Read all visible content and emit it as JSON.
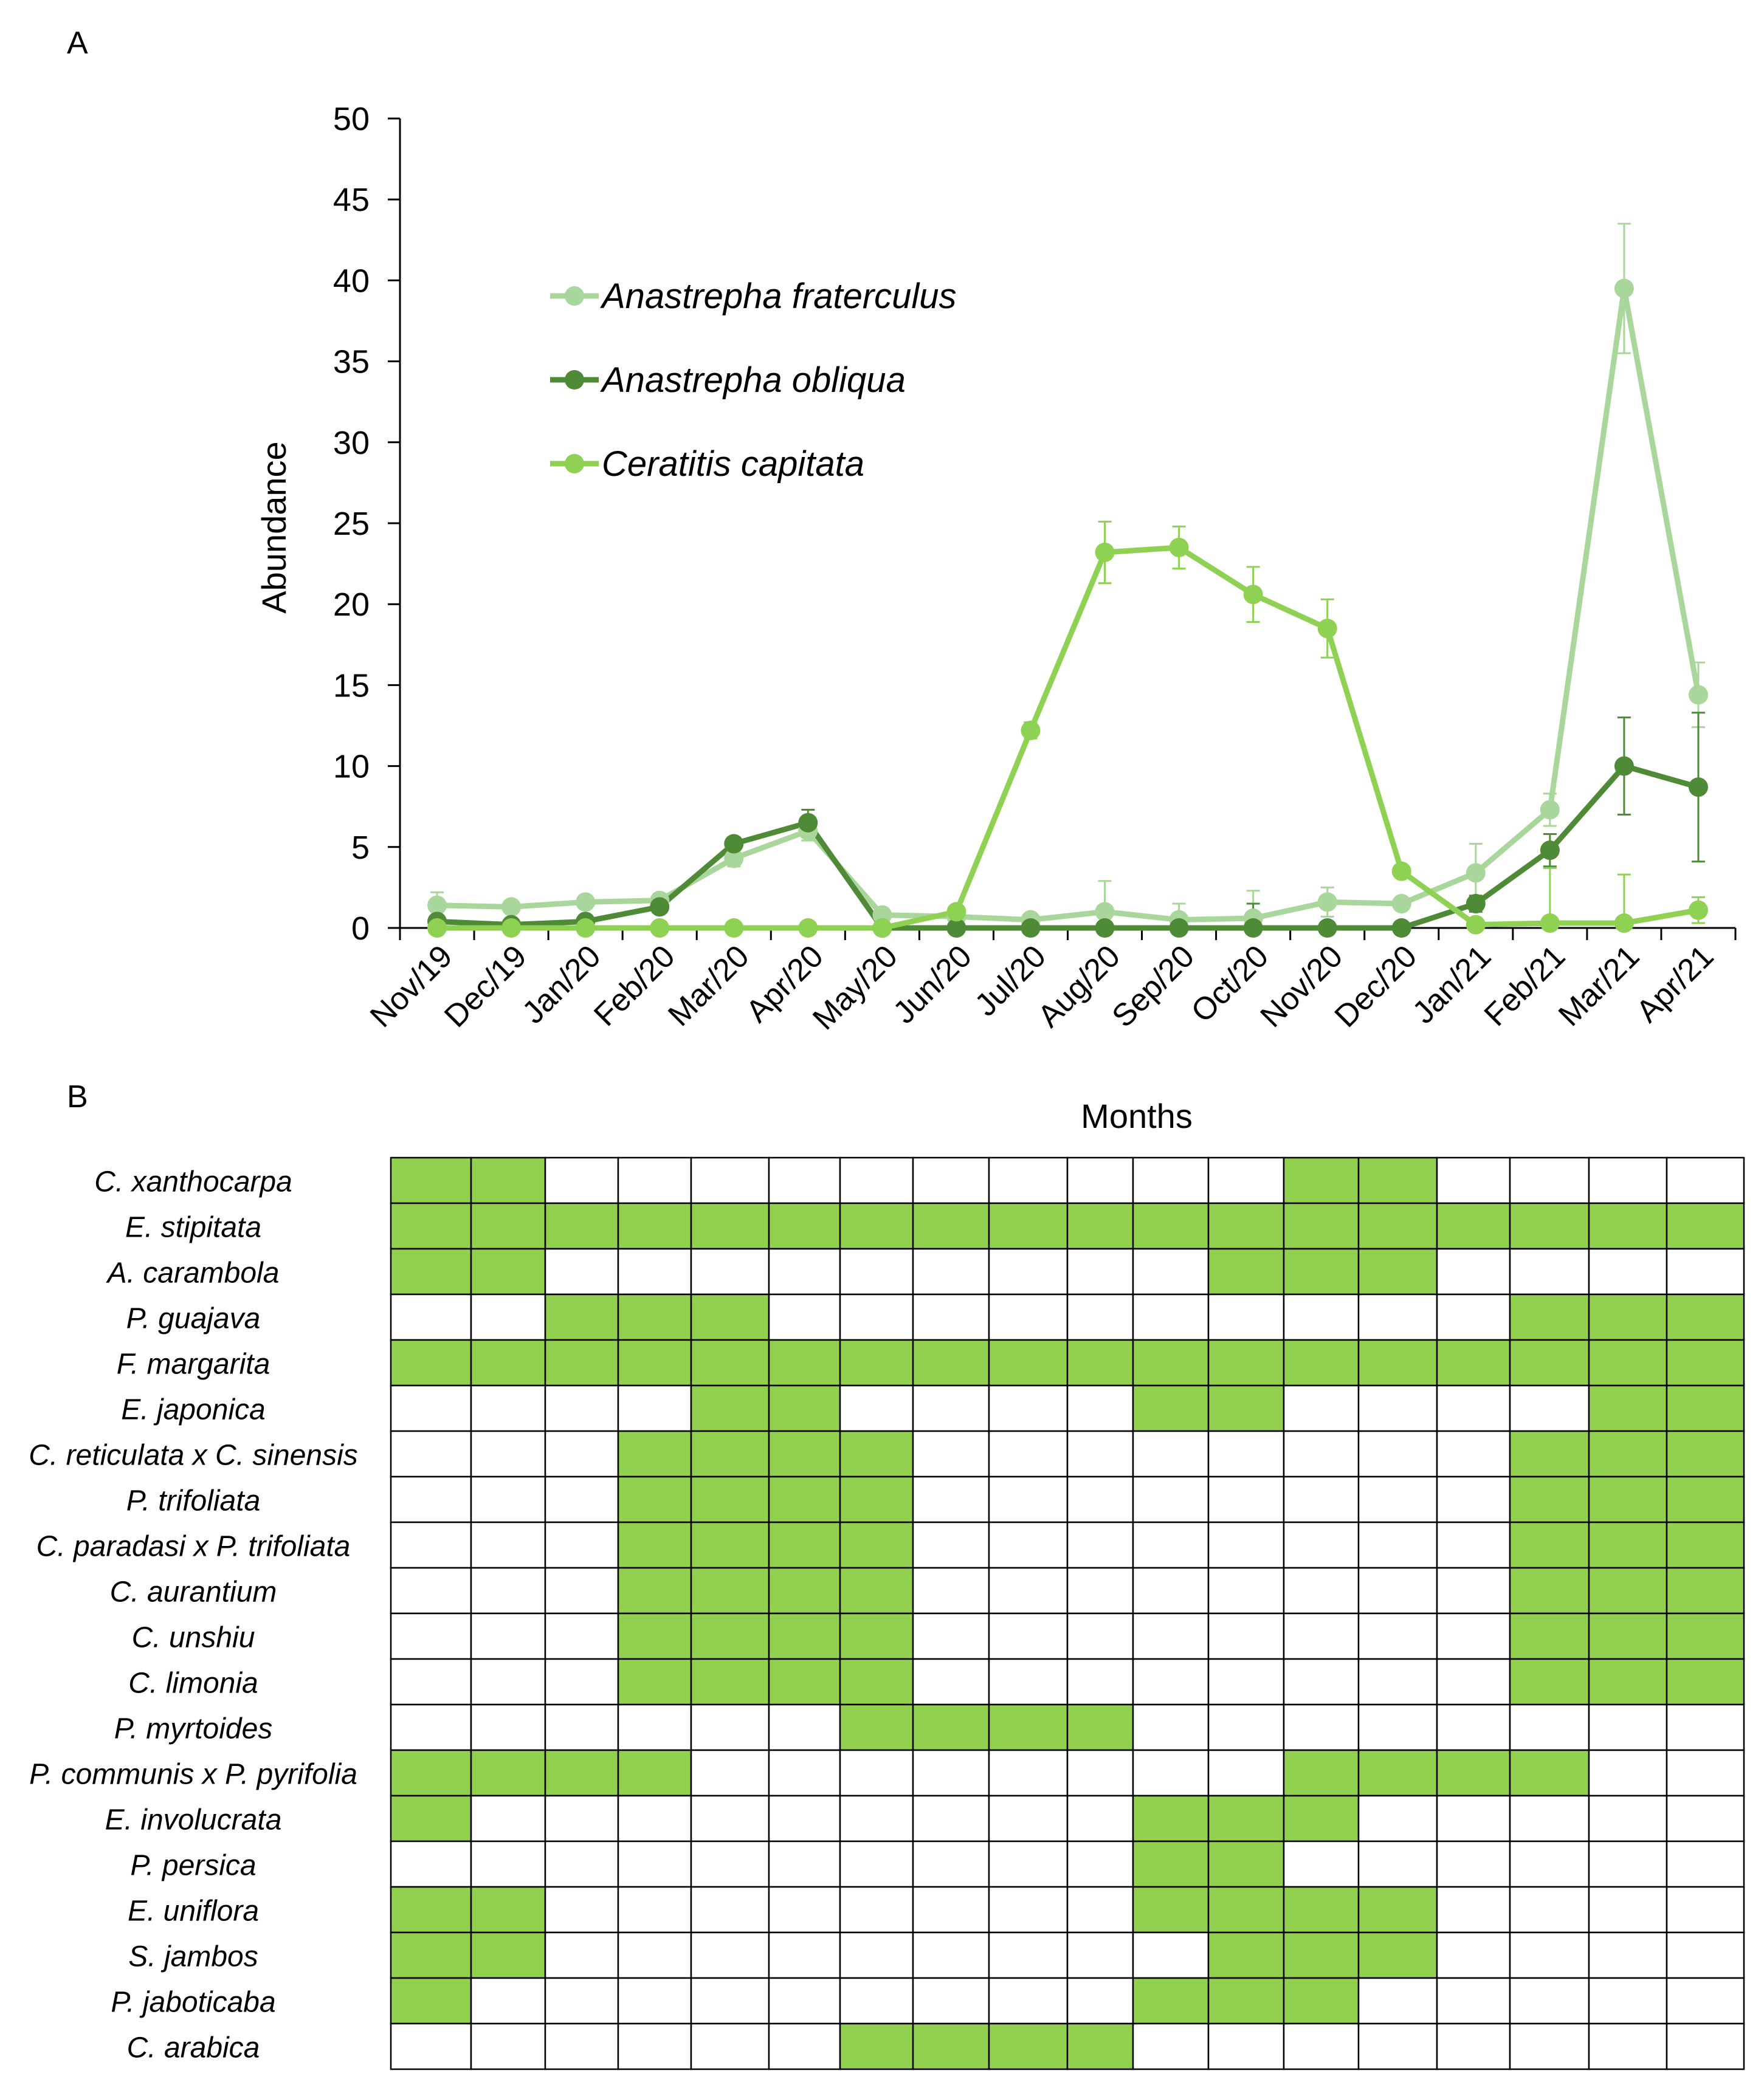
{
  "panel_labels": {
    "a": "A",
    "b": "B"
  },
  "colors": {
    "fraterculus": "#a9d69a",
    "obliqua": "#4f8a37",
    "capitata": "#8fd152",
    "cell_fill": "#92d050",
    "grid": "#000000"
  },
  "chart_data": [
    {
      "type": "line",
      "title": "",
      "xlabel": "",
      "ylabel": "Abundance",
      "ylim": [
        0,
        50
      ],
      "yticks": [
        0,
        5,
        10,
        15,
        20,
        25,
        30,
        35,
        40,
        45,
        50
      ],
      "legend_position": "upper-left",
      "categories": [
        "Nov/19",
        "Dec/19",
        "Jan/20",
        "Feb/20",
        "Mar/20",
        "Apr/20",
        "May/20",
        "Jun/20",
        "Jul/20",
        "Aug/20",
        "Sep/20",
        "Oct/20",
        "Nov/20",
        "Dec/20",
        "Jan/21",
        "Feb/21",
        "Mar/21",
        "Apr/21"
      ],
      "series": [
        {
          "name": "Anastrepha fraterculus",
          "color_key": "fraterculus",
          "values": [
            1.4,
            1.3,
            1.6,
            1.7,
            4.3,
            6.0,
            0.8,
            0.7,
            0.5,
            1.0,
            0.5,
            0.6,
            1.6,
            1.5,
            3.4,
            7.3,
            39.5,
            14.4
          ],
          "errors": [
            0.8,
            0.3,
            0.4,
            0.3,
            0.5,
            0.6,
            0.2,
            0.3,
            0.2,
            1.9,
            1.0,
            1.7,
            0.9,
            0.3,
            1.8,
            1.0,
            4.0,
            2.0
          ]
        },
        {
          "name": "Anastrepha obliqua",
          "color_key": "obliqua",
          "values": [
            0.4,
            0.2,
            0.4,
            1.3,
            5.2,
            6.5,
            0,
            0,
            0,
            0,
            0,
            0,
            0,
            0,
            1.5,
            4.8,
            10.0,
            8.7
          ],
          "errors": [
            0.2,
            0.1,
            0.2,
            0.3,
            0.4,
            0.8,
            0,
            0,
            0,
            0,
            0,
            1.5,
            0,
            0,
            0.5,
            1.0,
            3.0,
            4.6
          ]
        },
        {
          "name": "Ceratitis capitata",
          "color_key": "capitata",
          "values": [
            0,
            0,
            0,
            0,
            0,
            0,
            0,
            1.0,
            12.2,
            23.2,
            23.5,
            20.6,
            18.5,
            3.5,
            0.2,
            0.3,
            0.3,
            1.1
          ],
          "errors": [
            0,
            0,
            0,
            0,
            0,
            0,
            0,
            0.3,
            0.5,
            1.9,
            1.3,
            1.7,
            1.8,
            0.4,
            0.2,
            3.4,
            3.0,
            0.8
          ]
        }
      ]
    },
    {
      "type": "table",
      "title": "Months",
      "columns": 18,
      "rows": [
        {
          "name": "C. xanthocarpa",
          "cells": [
            1,
            1,
            0,
            0,
            0,
            0,
            0,
            0,
            0,
            0,
            0,
            0,
            1,
            1,
            0,
            0,
            0,
            0
          ]
        },
        {
          "name": "E. stipitata",
          "cells": [
            1,
            1,
            1,
            1,
            1,
            1,
            1,
            1,
            1,
            1,
            1,
            1,
            1,
            1,
            1,
            1,
            1,
            1
          ]
        },
        {
          "name": "A. carambola",
          "cells": [
            1,
            1,
            0,
            0,
            0,
            0,
            0,
            0,
            0,
            0,
            0,
            1,
            1,
            1,
            0,
            0,
            0,
            0
          ]
        },
        {
          "name": "P. guajava",
          "cells": [
            0,
            0,
            1,
            1,
            1,
            0,
            0,
            0,
            0,
            0,
            0,
            0,
            0,
            0,
            0,
            1,
            1,
            1
          ]
        },
        {
          "name": "F. margarita",
          "cells": [
            1,
            1,
            1,
            1,
            1,
            1,
            1,
            1,
            1,
            1,
            1,
            1,
            1,
            1,
            1,
            1,
            1,
            1
          ]
        },
        {
          "name": "E. japonica",
          "cells": [
            0,
            0,
            0,
            0,
            1,
            1,
            0,
            0,
            0,
            0,
            1,
            1,
            0,
            0,
            0,
            0,
            1,
            1
          ]
        },
        {
          "name": "C. reticulata x C. sinensis",
          "cells": [
            0,
            0,
            0,
            1,
            1,
            1,
            1,
            0,
            0,
            0,
            0,
            0,
            0,
            0,
            0,
            1,
            1,
            1
          ]
        },
        {
          "name": "P. trifoliata",
          "cells": [
            0,
            0,
            0,
            1,
            1,
            1,
            1,
            0,
            0,
            0,
            0,
            0,
            0,
            0,
            0,
            1,
            1,
            1
          ]
        },
        {
          "name": "C. paradasi x P. trifoliata",
          "cells": [
            0,
            0,
            0,
            1,
            1,
            1,
            1,
            0,
            0,
            0,
            0,
            0,
            0,
            0,
            0,
            1,
            1,
            1
          ]
        },
        {
          "name": "C. aurantium",
          "cells": [
            0,
            0,
            0,
            1,
            1,
            1,
            1,
            0,
            0,
            0,
            0,
            0,
            0,
            0,
            0,
            1,
            1,
            1
          ]
        },
        {
          "name": "C. unshiu",
          "cells": [
            0,
            0,
            0,
            1,
            1,
            1,
            1,
            0,
            0,
            0,
            0,
            0,
            0,
            0,
            0,
            1,
            1,
            1
          ]
        },
        {
          "name": "C. limonia",
          "cells": [
            0,
            0,
            0,
            1,
            1,
            1,
            1,
            0,
            0,
            0,
            0,
            0,
            0,
            0,
            0,
            1,
            1,
            1
          ]
        },
        {
          "name": "P. myrtoides",
          "cells": [
            0,
            0,
            0,
            0,
            0,
            0,
            1,
            1,
            1,
            1,
            0,
            0,
            0,
            0,
            0,
            0,
            0,
            0
          ]
        },
        {
          "name": "P. communis x P. pyrifolia",
          "cells": [
            1,
            1,
            1,
            1,
            0,
            0,
            0,
            0,
            0,
            0,
            0,
            0,
            1,
            1,
            1,
            1,
            0,
            0
          ]
        },
        {
          "name": "E. involucrata",
          "cells": [
            1,
            0,
            0,
            0,
            0,
            0,
            0,
            0,
            0,
            0,
            1,
            1,
            1,
            0,
            0,
            0,
            0,
            0
          ]
        },
        {
          "name": "P. persica",
          "cells": [
            0,
            0,
            0,
            0,
            0,
            0,
            0,
            0,
            0,
            0,
            1,
            1,
            0,
            0,
            0,
            0,
            0,
            0
          ]
        },
        {
          "name": "E. uniflora",
          "cells": [
            1,
            1,
            0,
            0,
            0,
            0,
            0,
            0,
            0,
            0,
            1,
            1,
            1,
            1,
            0,
            0,
            0,
            0
          ]
        },
        {
          "name": "S. jambos",
          "cells": [
            1,
            1,
            0,
            0,
            0,
            0,
            0,
            0,
            0,
            0,
            0,
            1,
            1,
            1,
            0,
            0,
            0,
            0
          ]
        },
        {
          "name": "P. jaboticaba",
          "cells": [
            1,
            0,
            0,
            0,
            0,
            0,
            0,
            0,
            0,
            0,
            1,
            1,
            1,
            0,
            0,
            0,
            0,
            0
          ]
        },
        {
          "name": "C. arabica",
          "cells": [
            0,
            0,
            0,
            0,
            0,
            0,
            1,
            1,
            1,
            1,
            0,
            0,
            0,
            0,
            0,
            0,
            0,
            0
          ]
        }
      ]
    }
  ]
}
